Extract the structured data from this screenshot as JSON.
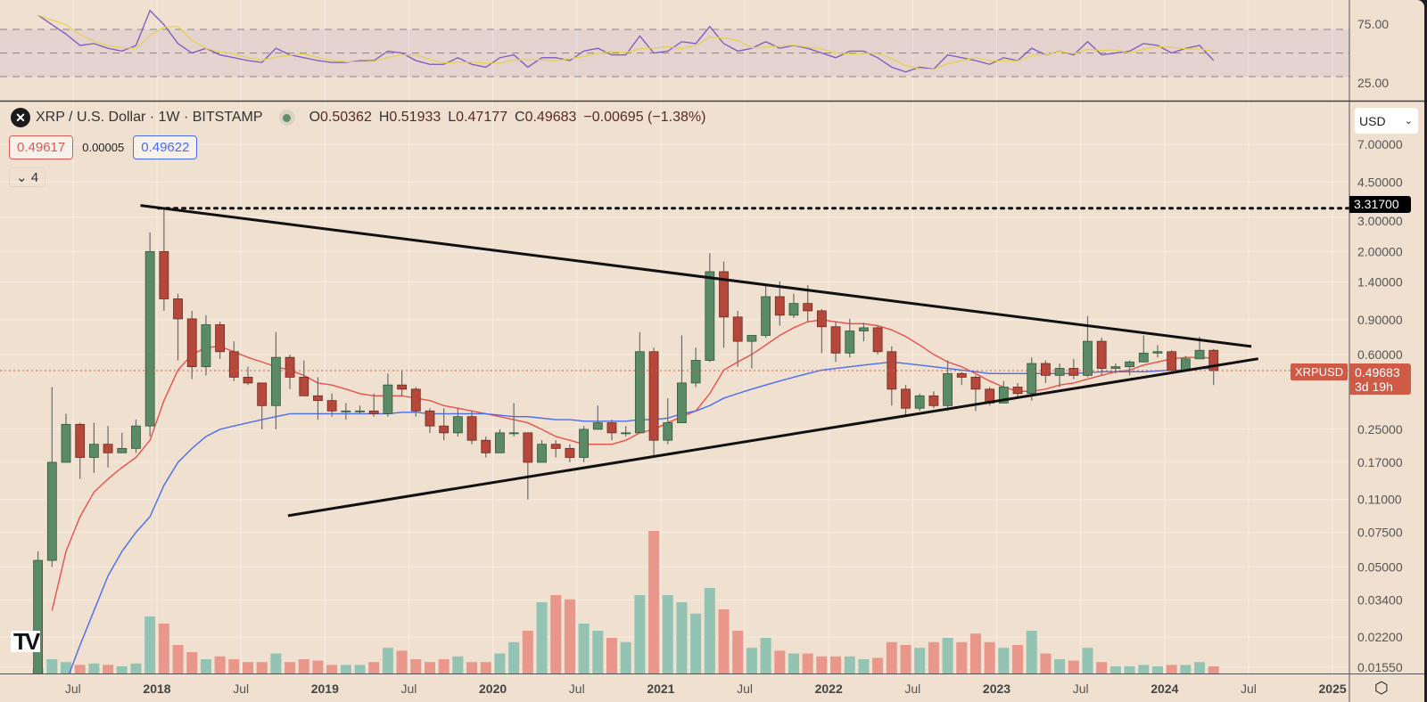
{
  "header": {
    "symbol_title": "XRP / U.S. Dollar · 1W · BITSTAMP",
    "symbol_icon": "xrp-logo-icon",
    "market_status": "market-open-dot",
    "open_prefix": "O",
    "open": "0.50362",
    "high_prefix": "H",
    "high": "0.51933",
    "low_prefix": "L",
    "low": "0.47177",
    "close_prefix": "C",
    "close": "0.49683",
    "change": "−0.00695 (−1.38%)",
    "bid": "0.49617",
    "spread": "0.00005",
    "ask": "0.49622",
    "indicators_toggle": "4"
  },
  "currency_select": {
    "value": "USD"
  },
  "labels": {
    "symbol_tag": "XRPUSD",
    "last_price": "0.49683",
    "countdown": "3d 19h",
    "ath_level": "3.31700"
  },
  "colors": {
    "background": "#efe0d0",
    "candle_up": "#5b8a66",
    "candle_down": "#b5483a",
    "volume_up": "#93c3b3",
    "volume_down": "#e9968b",
    "ma_red": "#e8504a",
    "ma_blue": "#4a6cf0",
    "rsi": "#7e57c2",
    "rsi_ma": "#e6d24a",
    "last_price": "#cf5a45"
  },
  "chart_data": {
    "type": "candlestick",
    "scale": "log",
    "grid": true,
    "ylim": [
      0.0145,
      8.5
    ],
    "y_ticks": [
      "7.00000",
      "4.50000",
      "3.00000",
      "2.00000",
      "1.40000",
      "0.90000",
      "0.60000",
      "0.25000",
      "0.17000",
      "0.11000",
      "0.07500",
      "0.05000",
      "0.03400",
      "0.02200",
      "0.01550"
    ],
    "x_ticks": [
      {
        "label": "Jul",
        "date": "2017-07",
        "major": false
      },
      {
        "label": "2018",
        "date": "2018-01",
        "major": true
      },
      {
        "label": "Jul",
        "date": "2018-07",
        "major": false
      },
      {
        "label": "2019",
        "date": "2019-01",
        "major": true
      },
      {
        "label": "Jul",
        "date": "2019-07",
        "major": false
      },
      {
        "label": "2020",
        "date": "2020-01",
        "major": true
      },
      {
        "label": "Jul",
        "date": "2020-07",
        "major": false
      },
      {
        "label": "2021",
        "date": "2021-01",
        "major": true
      },
      {
        "label": "Jul",
        "date": "2021-07",
        "major": false
      },
      {
        "label": "2022",
        "date": "2022-01",
        "major": true
      },
      {
        "label": "Jul",
        "date": "2022-07",
        "major": false
      },
      {
        "label": "2023",
        "date": "2023-01",
        "major": true
      },
      {
        "label": "Jul",
        "date": "2023-07",
        "major": false
      },
      {
        "label": "2024",
        "date": "2024-01",
        "major": true
      },
      {
        "label": "Jul",
        "date": "2024-07",
        "major": false
      },
      {
        "label": "2025",
        "date": "2025-01",
        "major": true
      }
    ],
    "candle_fields": [
      "date",
      "open",
      "high",
      "low",
      "close",
      "volume"
    ],
    "candles": [
      [
        "2017-04",
        0.009,
        0.06,
        0.009,
        0.054,
        4
      ],
      [
        "2017-05",
        0.054,
        0.41,
        0.05,
        0.17,
        10
      ],
      [
        "2017-06",
        0.17,
        0.3,
        0.17,
        0.265,
        8
      ],
      [
        "2017-07",
        0.265,
        0.27,
        0.14,
        0.18,
        6
      ],
      [
        "2017-08",
        0.18,
        0.27,
        0.15,
        0.21,
        7
      ],
      [
        "2017-09",
        0.21,
        0.26,
        0.16,
        0.19,
        6
      ],
      [
        "2017-10",
        0.19,
        0.24,
        0.19,
        0.2,
        5
      ],
      [
        "2017-11",
        0.2,
        0.28,
        0.19,
        0.26,
        7
      ],
      [
        "2017-12",
        0.26,
        2.5,
        0.23,
        2.0,
        40
      ],
      [
        "2018-01",
        2.0,
        3.317,
        1.0,
        1.15,
        35
      ],
      [
        "2018-02",
        1.15,
        1.22,
        0.56,
        0.91,
        20
      ],
      [
        "2018-03",
        0.91,
        1.0,
        0.45,
        0.52,
        15
      ],
      [
        "2018-04",
        0.52,
        0.95,
        0.47,
        0.85,
        10
      ],
      [
        "2018-05",
        0.85,
        0.88,
        0.57,
        0.62,
        12
      ],
      [
        "2018-06",
        0.62,
        0.7,
        0.44,
        0.46,
        10
      ],
      [
        "2018-07",
        0.46,
        0.52,
        0.42,
        0.43,
        8
      ],
      [
        "2018-08",
        0.43,
        0.43,
        0.25,
        0.33,
        8
      ],
      [
        "2018-09",
        0.33,
        0.78,
        0.25,
        0.58,
        14
      ],
      [
        "2018-10",
        0.58,
        0.6,
        0.4,
        0.46,
        8
      ],
      [
        "2018-11",
        0.46,
        0.56,
        0.37,
        0.37,
        10
      ],
      [
        "2018-12",
        0.37,
        0.46,
        0.28,
        0.35,
        9
      ],
      [
        "2019-01",
        0.35,
        0.38,
        0.29,
        0.31,
        6
      ],
      [
        "2019-02",
        0.31,
        0.34,
        0.28,
        0.31,
        6
      ],
      [
        "2019-03",
        0.31,
        0.33,
        0.3,
        0.31,
        6
      ],
      [
        "2019-04",
        0.31,
        0.38,
        0.29,
        0.3,
        8
      ],
      [
        "2019-05",
        0.3,
        0.48,
        0.29,
        0.42,
        18
      ],
      [
        "2019-06",
        0.42,
        0.5,
        0.37,
        0.4,
        16
      ],
      [
        "2019-07",
        0.4,
        0.41,
        0.29,
        0.31,
        10
      ],
      [
        "2019-08",
        0.31,
        0.32,
        0.24,
        0.26,
        8
      ],
      [
        "2019-09",
        0.26,
        0.32,
        0.22,
        0.24,
        10
      ],
      [
        "2019-10",
        0.24,
        0.32,
        0.23,
        0.29,
        12
      ],
      [
        "2019-11",
        0.29,
        0.31,
        0.21,
        0.22,
        8
      ],
      [
        "2019-12",
        0.22,
        0.23,
        0.18,
        0.19,
        8
      ],
      [
        "2020-01",
        0.19,
        0.25,
        0.19,
        0.24,
        14
      ],
      [
        "2020-02",
        0.24,
        0.34,
        0.23,
        0.24,
        22
      ],
      [
        "2020-03",
        0.24,
        0.24,
        0.11,
        0.17,
        30
      ],
      [
        "2020-04",
        0.17,
        0.22,
        0.17,
        0.21,
        50
      ],
      [
        "2020-05",
        0.21,
        0.22,
        0.18,
        0.2,
        55
      ],
      [
        "2020-06",
        0.2,
        0.21,
        0.17,
        0.18,
        52
      ],
      [
        "2020-07",
        0.18,
        0.26,
        0.17,
        0.25,
        35
      ],
      [
        "2020-08",
        0.25,
        0.33,
        0.25,
        0.27,
        30
      ],
      [
        "2020-09",
        0.27,
        0.28,
        0.22,
        0.24,
        25
      ],
      [
        "2020-10",
        0.24,
        0.26,
        0.23,
        0.24,
        22
      ],
      [
        "2020-11",
        0.24,
        0.78,
        0.24,
        0.62,
        55
      ],
      [
        "2020-12",
        0.62,
        0.65,
        0.18,
        0.22,
        100
      ],
      [
        "2021-01",
        0.22,
        0.36,
        0.21,
        0.27,
        55
      ],
      [
        "2021-02",
        0.27,
        0.75,
        0.27,
        0.43,
        50
      ],
      [
        "2021-03",
        0.43,
        0.65,
        0.41,
        0.56,
        42
      ],
      [
        "2021-04",
        0.56,
        1.96,
        0.55,
        1.58,
        60
      ],
      [
        "2021-05",
        1.58,
        1.78,
        0.65,
        0.93,
        45
      ],
      [
        "2021-06",
        0.93,
        1.0,
        0.52,
        0.7,
        30
      ],
      [
        "2021-07",
        0.7,
        0.75,
        0.51,
        0.75,
        18
      ],
      [
        "2021-08",
        0.75,
        1.35,
        0.73,
        1.18,
        25
      ],
      [
        "2021-09",
        1.18,
        1.41,
        0.84,
        0.95,
        16
      ],
      [
        "2021-10",
        0.95,
        1.22,
        0.92,
        1.09,
        14
      ],
      [
        "2021-11",
        1.09,
        1.35,
        0.88,
        1.0,
        14
      ],
      [
        "2021-12",
        1.0,
        1.02,
        0.61,
        0.83,
        12
      ],
      [
        "2022-01",
        0.83,
        0.88,
        0.55,
        0.61,
        12
      ],
      [
        "2022-02",
        0.61,
        0.91,
        0.58,
        0.79,
        12
      ],
      [
        "2022-03",
        0.79,
        0.87,
        0.7,
        0.82,
        10
      ],
      [
        "2022-04",
        0.82,
        0.84,
        0.6,
        0.62,
        11
      ],
      [
        "2022-05",
        0.62,
        0.66,
        0.33,
        0.4,
        22
      ],
      [
        "2022-06",
        0.4,
        0.42,
        0.29,
        0.32,
        20
      ],
      [
        "2022-07",
        0.32,
        0.38,
        0.31,
        0.37,
        18
      ],
      [
        "2022-08",
        0.37,
        0.39,
        0.32,
        0.33,
        22
      ],
      [
        "2022-09",
        0.33,
        0.56,
        0.31,
        0.48,
        25
      ],
      [
        "2022-10",
        0.48,
        0.49,
        0.42,
        0.46,
        22
      ],
      [
        "2022-11",
        0.46,
        0.47,
        0.31,
        0.4,
        28
      ],
      [
        "2022-12",
        0.4,
        0.41,
        0.33,
        0.34,
        22
      ],
      [
        "2023-01",
        0.34,
        0.44,
        0.34,
        0.41,
        18
      ],
      [
        "2023-02",
        0.41,
        0.43,
        0.36,
        0.38,
        20
      ],
      [
        "2023-03",
        0.38,
        0.58,
        0.35,
        0.54,
        30
      ],
      [
        "2023-04",
        0.54,
        0.56,
        0.43,
        0.47,
        14
      ],
      [
        "2023-05",
        0.47,
        0.54,
        0.41,
        0.51,
        10
      ],
      [
        "2023-06",
        0.51,
        0.57,
        0.45,
        0.47,
        9
      ],
      [
        "2023-07",
        0.47,
        0.94,
        0.46,
        0.7,
        18
      ],
      [
        "2023-08",
        0.7,
        0.73,
        0.47,
        0.51,
        8
      ],
      [
        "2023-09",
        0.51,
        0.54,
        0.48,
        0.52,
        5
      ],
      [
        "2023-10",
        0.52,
        0.56,
        0.47,
        0.55,
        5
      ],
      [
        "2023-11",
        0.55,
        0.75,
        0.55,
        0.61,
        6
      ],
      [
        "2023-12",
        0.61,
        0.67,
        0.58,
        0.62,
        5
      ],
      [
        "2024-01",
        0.62,
        0.63,
        0.48,
        0.5,
        6
      ],
      [
        "2024-02",
        0.5,
        0.59,
        0.49,
        0.57,
        6
      ],
      [
        "2024-03",
        0.57,
        0.74,
        0.57,
        0.63,
        8
      ],
      [
        "2024-04",
        0.63,
        0.64,
        0.42,
        0.49683,
        5
      ]
    ],
    "ma_red": [
      null,
      0.03,
      0.06,
      0.09,
      0.12,
      0.14,
      0.16,
      0.18,
      0.22,
      0.35,
      0.5,
      0.6,
      0.65,
      0.66,
      0.62,
      0.58,
      0.55,
      0.52,
      0.5,
      0.47,
      0.43,
      0.42,
      0.4,
      0.38,
      0.37,
      0.37,
      0.37,
      0.36,
      0.35,
      0.33,
      0.32,
      0.31,
      0.3,
      0.29,
      0.28,
      0.27,
      0.25,
      0.23,
      0.22,
      0.21,
      0.21,
      0.21,
      0.22,
      0.24,
      0.25,
      0.27,
      0.29,
      0.31,
      0.38,
      0.5,
      0.55,
      0.6,
      0.67,
      0.75,
      0.82,
      0.88,
      0.9,
      0.88,
      0.86,
      0.86,
      0.84,
      0.8,
      0.74,
      0.67,
      0.6,
      0.55,
      0.52,
      0.48,
      0.44,
      0.41,
      0.39,
      0.39,
      0.4,
      0.42,
      0.43,
      0.45,
      0.47,
      0.49,
      0.5,
      0.53,
      0.55,
      0.57,
      0.58,
      0.58,
      0.575
    ],
    "ma_blue": [
      null,
      null,
      0.013,
      0.02,
      0.03,
      0.045,
      0.06,
      0.075,
      0.09,
      0.13,
      0.17,
      0.2,
      0.23,
      0.25,
      0.26,
      0.27,
      0.28,
      0.29,
      0.3,
      0.3,
      0.3,
      0.3,
      0.3,
      0.3,
      0.3,
      0.3,
      0.305,
      0.305,
      0.3,
      0.3,
      0.3,
      0.3,
      0.3,
      0.295,
      0.29,
      0.29,
      0.285,
      0.28,
      0.28,
      0.275,
      0.275,
      0.275,
      0.275,
      0.28,
      0.28,
      0.285,
      0.3,
      0.31,
      0.33,
      0.36,
      0.38,
      0.4,
      0.42,
      0.44,
      0.46,
      0.48,
      0.5,
      0.51,
      0.52,
      0.53,
      0.54,
      0.55,
      0.54,
      0.53,
      0.52,
      0.51,
      0.5,
      0.49,
      0.48,
      0.48,
      0.48,
      0.48,
      0.48,
      0.48,
      0.48,
      0.485,
      0.49,
      0.49,
      0.49,
      0.49,
      0.495,
      0.5,
      0.5,
      0.51,
      0.51
    ],
    "trendlines": [
      {
        "name": "upper",
        "from": {
          "date": "2017-11-26",
          "price": 3.43
        },
        "to": {
          "date": "2024-07-07",
          "price": 0.659
        }
      },
      {
        "name": "lower",
        "from": {
          "date": "2018-10-12",
          "price": 0.0911
        },
        "to": {
          "date": "2024-07-22",
          "price": 0.571
        }
      }
    ],
    "horizontal_line": {
      "price": 3.317,
      "from_date": "2018-01-04",
      "style": "dotted"
    },
    "last_price_line": 0.49683,
    "rsi": {
      "y_ticks": [
        "75.00",
        "25.00"
      ],
      "bands": [
        75,
        50,
        25
      ],
      "values": [
        90,
        80,
        70,
        58,
        60,
        55,
        52,
        58,
        95,
        80,
        60,
        50,
        55,
        48,
        45,
        42,
        40,
        55,
        48,
        45,
        42,
        40,
        40,
        42,
        42,
        52,
        50,
        42,
        38,
        38,
        45,
        38,
        35,
        45,
        48,
        35,
        45,
        45,
        42,
        52,
        55,
        48,
        48,
        68,
        50,
        52,
        62,
        60,
        78,
        60,
        52,
        55,
        62,
        55,
        58,
        55,
        50,
        45,
        52,
        52,
        45,
        35,
        30,
        35,
        33,
        48,
        45,
        42,
        38,
        45,
        42,
        55,
        48,
        52,
        48,
        62,
        48,
        50,
        52,
        60,
        58,
        50,
        55,
        58,
        42
      ]
    }
  }
}
